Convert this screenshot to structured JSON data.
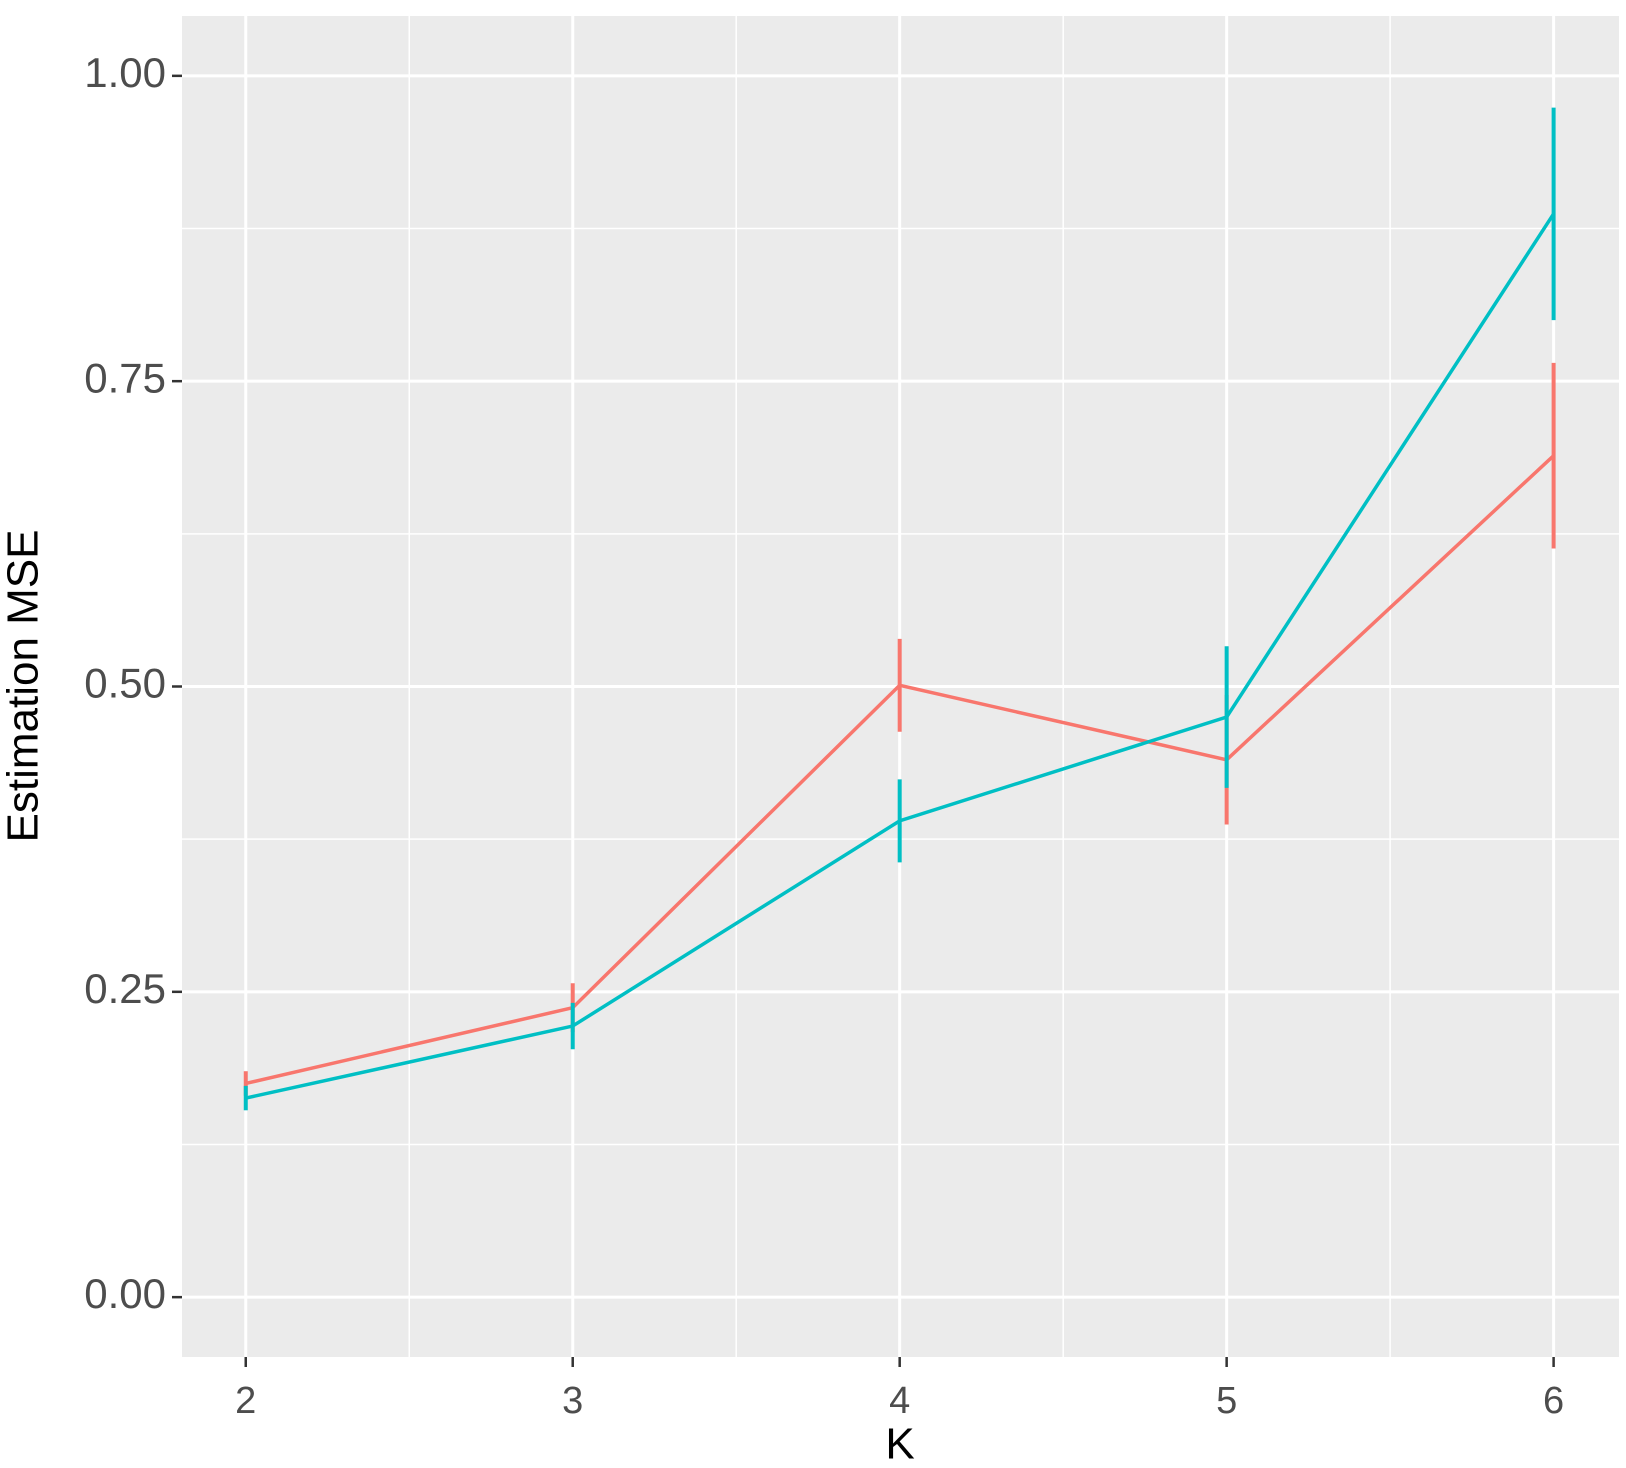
{
  "chart_data": {
    "type": "line",
    "x_label": "K",
    "y_label": "Estimation MSE",
    "x": [
      2,
      3,
      4,
      5,
      6
    ],
    "series": [
      {
        "color": "#F8766D",
        "values": [
          0.175,
          0.237,
          0.501,
          0.44,
          0.689
        ],
        "errors": [
          0.01,
          0.02,
          0.038,
          0.053,
          0.076
        ]
      },
      {
        "color": "#00BFC4",
        "values": [
          0.163,
          0.222,
          0.39,
          0.475,
          0.887
        ],
        "errors": [
          0.01,
          0.019,
          0.034,
          0.058,
          0.087
        ]
      }
    ],
    "xlim": [
      1.805,
      6.2
    ],
    "xticks": [
      2,
      3,
      4,
      5,
      6
    ],
    "ylim": [
      -0.049,
      1.049
    ],
    "yticks": [
      {
        "value": 0,
        "label": "0.00"
      },
      {
        "value": 0.25,
        "label": "0.25"
      },
      {
        "value": 0.5,
        "label": "0.50"
      },
      {
        "value": 0.75,
        "label": "0.75"
      },
      {
        "value": 1,
        "label": "1.00"
      }
    ],
    "grid": true
  }
}
